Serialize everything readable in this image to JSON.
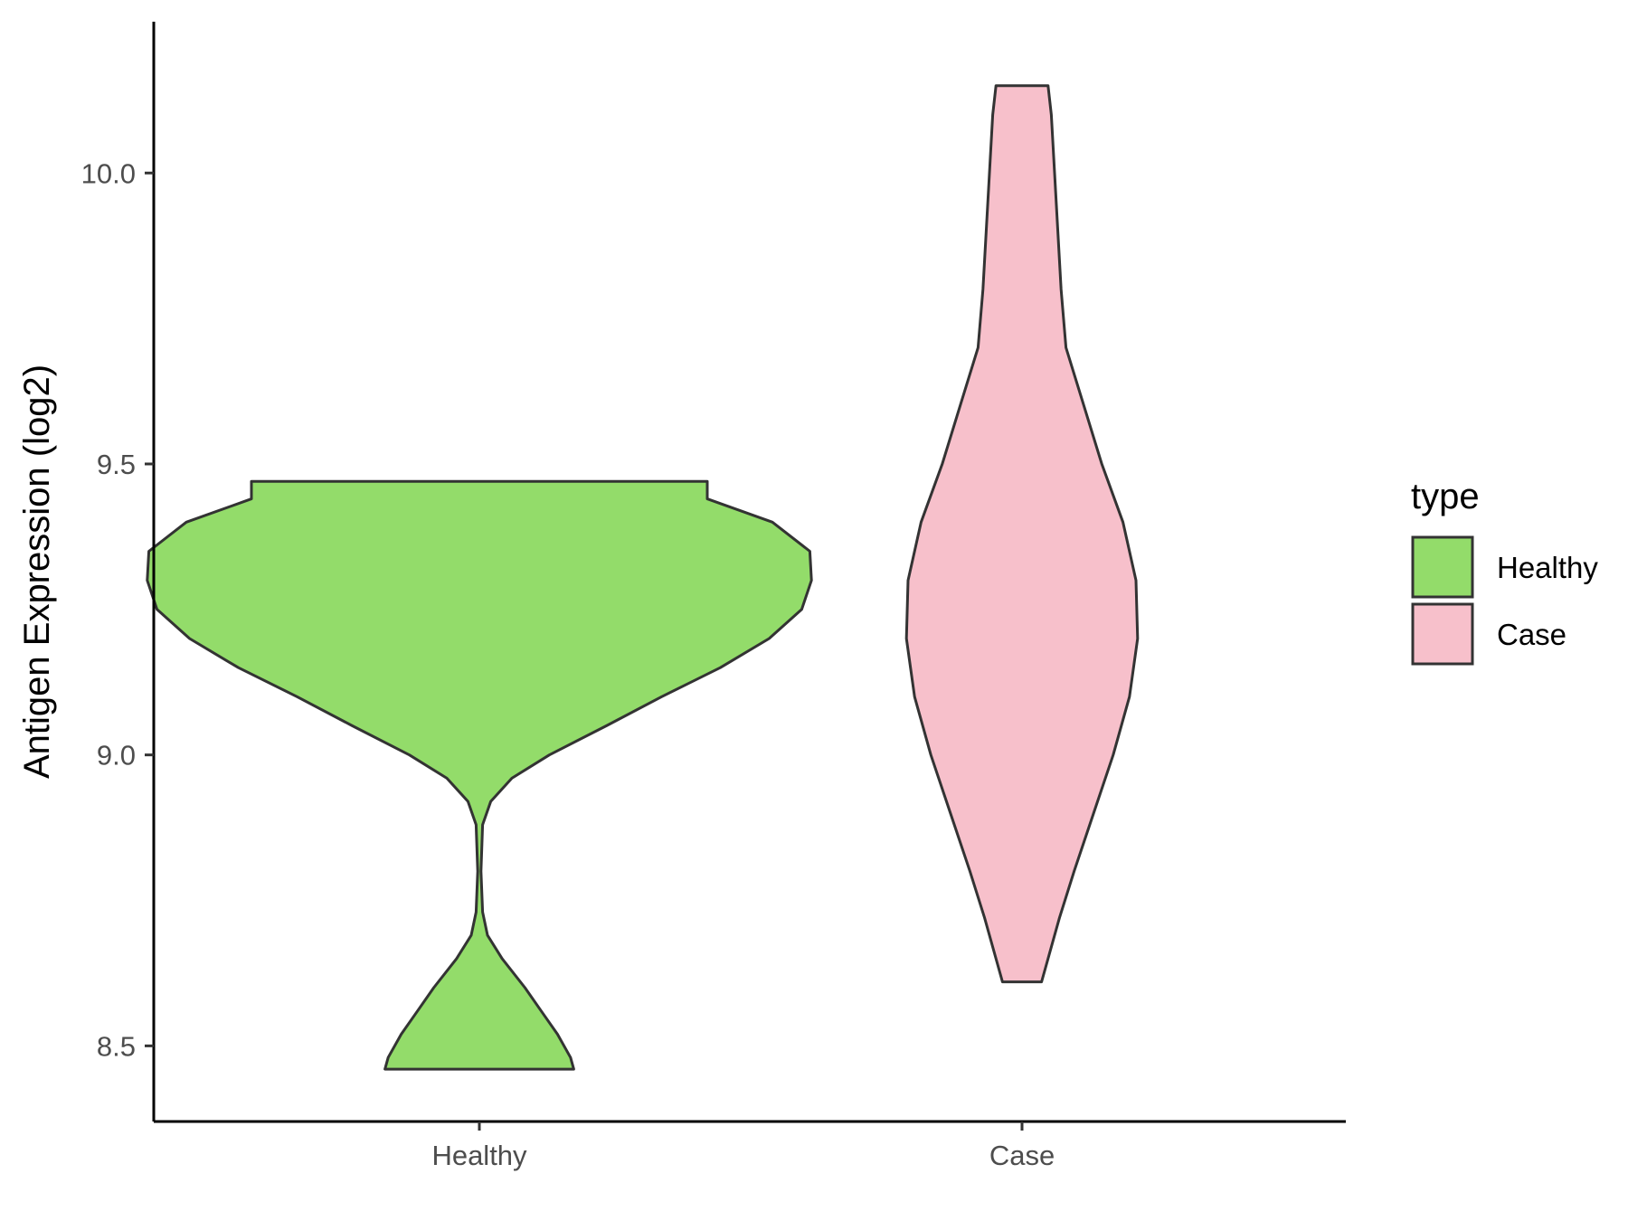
{
  "chart_data": {
    "type": "violin",
    "title": "",
    "xlabel": "",
    "ylabel": "Antigen Expression (log2)",
    "ylim": [
      8.37,
      10.26
    ],
    "yticks": [
      8.5,
      9.0,
      9.5,
      10.0
    ],
    "ytick_labels": [
      "8.5",
      "9.0",
      "9.5",
      "10.0"
    ],
    "categories": [
      "Healthy",
      "Case"
    ],
    "grid": false,
    "legend": {
      "title": "type",
      "position": "right",
      "entries": [
        {
          "label": "Healthy",
          "color": "#93dc6a"
        },
        {
          "label": "Case",
          "color": "#f7c0cb"
        }
      ]
    },
    "series": [
      {
        "name": "Healthy",
        "color": "#93dc6a",
        "min": 8.46,
        "max": 9.47,
        "density": [
          [
            8.46,
            0.58
          ],
          [
            8.48,
            0.56
          ],
          [
            8.52,
            0.48
          ],
          [
            8.56,
            0.38
          ],
          [
            8.6,
            0.28
          ],
          [
            8.65,
            0.14
          ],
          [
            8.69,
            0.05
          ],
          [
            8.73,
            0.02
          ],
          [
            8.8,
            0.01
          ],
          [
            8.88,
            0.02
          ],
          [
            8.92,
            0.07
          ],
          [
            8.96,
            0.2
          ],
          [
            9.0,
            0.43
          ],
          [
            9.05,
            0.78
          ],
          [
            9.1,
            1.12
          ],
          [
            9.15,
            1.48
          ],
          [
            9.2,
            1.78
          ],
          [
            9.25,
            1.98
          ],
          [
            9.3,
            2.04
          ],
          [
            9.35,
            2.03
          ],
          [
            9.4,
            1.8
          ],
          [
            9.44,
            1.4
          ],
          [
            9.47,
            1.4
          ]
        ]
      },
      {
        "name": "Case",
        "color": "#f7c0cb",
        "min": 8.61,
        "max": 10.15,
        "density": [
          [
            8.61,
            0.12
          ],
          [
            8.65,
            0.16
          ],
          [
            8.72,
            0.23
          ],
          [
            8.8,
            0.32
          ],
          [
            8.9,
            0.44
          ],
          [
            9.0,
            0.56
          ],
          [
            9.1,
            0.66
          ],
          [
            9.2,
            0.71
          ],
          [
            9.3,
            0.7
          ],
          [
            9.4,
            0.62
          ],
          [
            9.5,
            0.49
          ],
          [
            9.6,
            0.38
          ],
          [
            9.7,
            0.27
          ],
          [
            9.8,
            0.24
          ],
          [
            9.9,
            0.22
          ],
          [
            10.0,
            0.2
          ],
          [
            10.1,
            0.18
          ],
          [
            10.15,
            0.16
          ]
        ]
      }
    ]
  }
}
